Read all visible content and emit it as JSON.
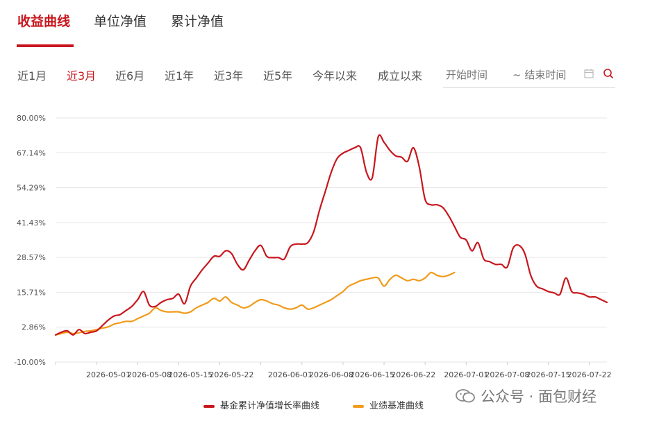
{
  "tabs": [
    {
      "label": "收益曲线",
      "active": true
    },
    {
      "label": "单位净值",
      "active": false
    },
    {
      "label": "累计净值",
      "active": false
    }
  ],
  "periods": [
    {
      "label": "近1月",
      "active": false
    },
    {
      "label": "近3月",
      "active": true
    },
    {
      "label": "近6月",
      "active": false
    },
    {
      "label": "近1年",
      "active": false
    },
    {
      "label": "近3年",
      "active": false
    },
    {
      "label": "近5年",
      "active": false
    },
    {
      "label": "今年以来",
      "active": false
    },
    {
      "label": "成立以来",
      "active": false
    }
  ],
  "date_range": {
    "start_placeholder": "开始时间",
    "end_placeholder": "~ 结束时间"
  },
  "icons": {
    "calendar": "calendar-icon",
    "search": "search-icon"
  },
  "colors": {
    "accent": "#c8161d",
    "fund": "#c8161d",
    "benchmark": "#f29a1b",
    "grid": "#e6e6e6"
  },
  "watermark": "公众号 · 面包财经",
  "chart_data": {
    "type": "line",
    "yticks": [
      "80.00%",
      "67.14%",
      "54.29%",
      "41.43%",
      "28.57%",
      "15.71%",
      "2.86%",
      "-10.00%"
    ],
    "ylim": [
      -10,
      80
    ],
    "xlim": [
      0,
      94
    ],
    "xticks": [
      {
        "i": 9,
        "label": "2026-05-01"
      },
      {
        "i": 16,
        "label": "2026-05-08"
      },
      {
        "i": 23,
        "label": "2026-05-15"
      },
      {
        "i": 30,
        "label": "2026-05-22"
      },
      {
        "i": 40,
        "label": "2026-06-01"
      },
      {
        "i": 47,
        "label": "2026-06-08"
      },
      {
        "i": 54,
        "label": "2026-06-15"
      },
      {
        "i": 61,
        "label": "2026-06-22"
      },
      {
        "i": 70,
        "label": "2026-07-01"
      },
      {
        "i": 77,
        "label": "2026-07-08"
      },
      {
        "i": 84,
        "label": "2026-07-15"
      },
      {
        "i": 91,
        "label": "2026-07-22"
      }
    ],
    "xlabel": "",
    "ylabel": "",
    "legend_position": "bottom",
    "grid": true,
    "series": [
      {
        "name": "基金累计净值增长率曲线",
        "color": "#c8161d",
        "x": [
          0,
          1,
          2,
          3,
          4,
          5,
          6,
          7,
          8,
          9,
          10,
          11,
          12,
          13,
          14,
          15,
          16,
          17,
          18,
          19,
          20,
          21,
          22,
          23,
          24,
          25,
          26,
          27,
          28,
          29,
          30,
          31,
          32,
          33,
          34,
          35,
          36,
          37,
          38,
          39,
          40,
          41,
          42,
          43,
          44,
          45,
          46,
          47,
          48,
          49,
          50,
          51,
          52,
          53,
          54,
          55,
          56,
          57,
          58,
          59,
          60,
          61,
          62,
          63,
          64,
          65,
          66,
          67,
          68,
          69,
          70,
          71,
          72,
          73,
          74,
          75,
          76,
          77,
          78,
          79,
          80,
          81,
          82,
          83,
          84,
          85,
          86,
          87,
          88,
          89,
          90,
          91,
          92,
          93,
          94
        ],
        "values": [
          0,
          1,
          1.5,
          0,
          2,
          0.5,
          1,
          1.5,
          3.5,
          5.5,
          7,
          7.5,
          9,
          10.5,
          13,
          16,
          11,
          10.5,
          12,
          13,
          13.5,
          15,
          11.5,
          18,
          21,
          24,
          26.5,
          29,
          29,
          31,
          30,
          26,
          24,
          27.5,
          31,
          33,
          29,
          28.5,
          28.5,
          28,
          32.5,
          33.5,
          33.5,
          34,
          38,
          46,
          53,
          60,
          65,
          67,
          68,
          69,
          69,
          60,
          58,
          73,
          71,
          68,
          66,
          65.5,
          64,
          69,
          62,
          50,
          48,
          48,
          47,
          44,
          40,
          36,
          35,
          31,
          34,
          28,
          27,
          26,
          26,
          25,
          32,
          33,
          30,
          22,
          18,
          17,
          16,
          15.5,
          15,
          21,
          16,
          15.5,
          15,
          14,
          14,
          13,
          12
        ],
        "x_extra_note": ""
      },
      {
        "name": "业绩基准曲线",
        "color": "#f29a1b",
        "x": [
          0,
          1,
          2,
          3,
          4,
          5,
          6,
          7,
          8,
          9,
          10,
          11,
          12,
          13,
          14,
          15,
          16,
          17,
          18,
          19,
          20,
          21,
          22,
          23,
          24,
          25,
          26,
          27,
          28,
          29,
          30,
          31,
          32,
          33,
          34,
          35,
          36,
          37,
          38,
          39,
          40,
          41,
          42,
          43,
          44,
          45,
          46,
          47,
          48,
          49,
          50,
          51,
          52,
          53,
          54,
          55,
          56,
          57,
          58,
          59,
          60,
          61,
          62,
          63,
          64,
          65,
          66,
          67,
          68
        ],
        "values": [
          0,
          0.5,
          1,
          0.5,
          0.8,
          1.3,
          1.5,
          2,
          2.5,
          3,
          4,
          4.5,
          5,
          5,
          6,
          7,
          8,
          10,
          9,
          8.5,
          8.5,
          8.5,
          8,
          8.5,
          10,
          11,
          12,
          13.5,
          12.5,
          14,
          12,
          11,
          10,
          10.5,
          12,
          13,
          12.5,
          11.5,
          11,
          10,
          9.5,
          10,
          11,
          9.5,
          10,
          11,
          12,
          13,
          14.5,
          16,
          18,
          19,
          20,
          20.5,
          21,
          21,
          18,
          20.5,
          22,
          21,
          20,
          20.5,
          20,
          21,
          23,
          22,
          21.5,
          22,
          23
        ]
      }
    ]
  }
}
